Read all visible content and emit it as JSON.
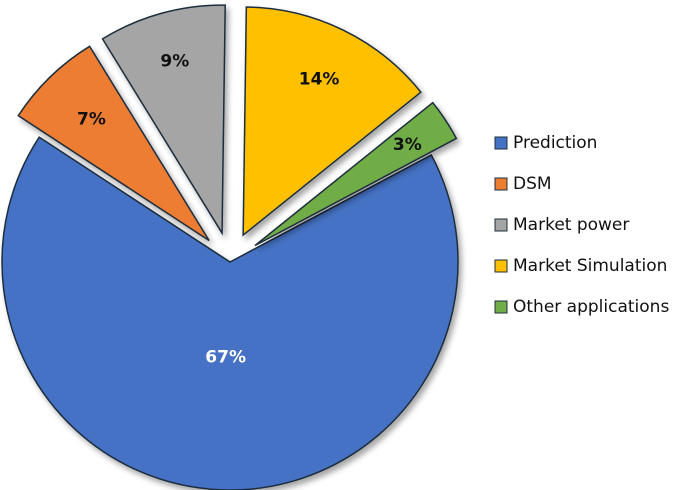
{
  "chart_data": {
    "type": "pie",
    "title": "",
    "legend_position": "right",
    "slices": [
      {
        "name": "Prediction",
        "value": 67,
        "label": "67%",
        "color": "#4472C4",
        "label_color": "#ffffff"
      },
      {
        "name": "DSM",
        "value": 7,
        "label": "7%",
        "color": "#ED7D31",
        "label_color": "#111111"
      },
      {
        "name": "Market power",
        "value": 9,
        "label": "9%",
        "color": "#A5A5A5",
        "label_color": "#111111"
      },
      {
        "name": "Market Simulation",
        "value": 14,
        "label": "14%",
        "color": "#FFC000",
        "label_color": "#111111"
      },
      {
        "name": "Other applications",
        "value": 3,
        "label": "3%",
        "color": "#70AD47",
        "label_color": "#111111"
      }
    ]
  }
}
